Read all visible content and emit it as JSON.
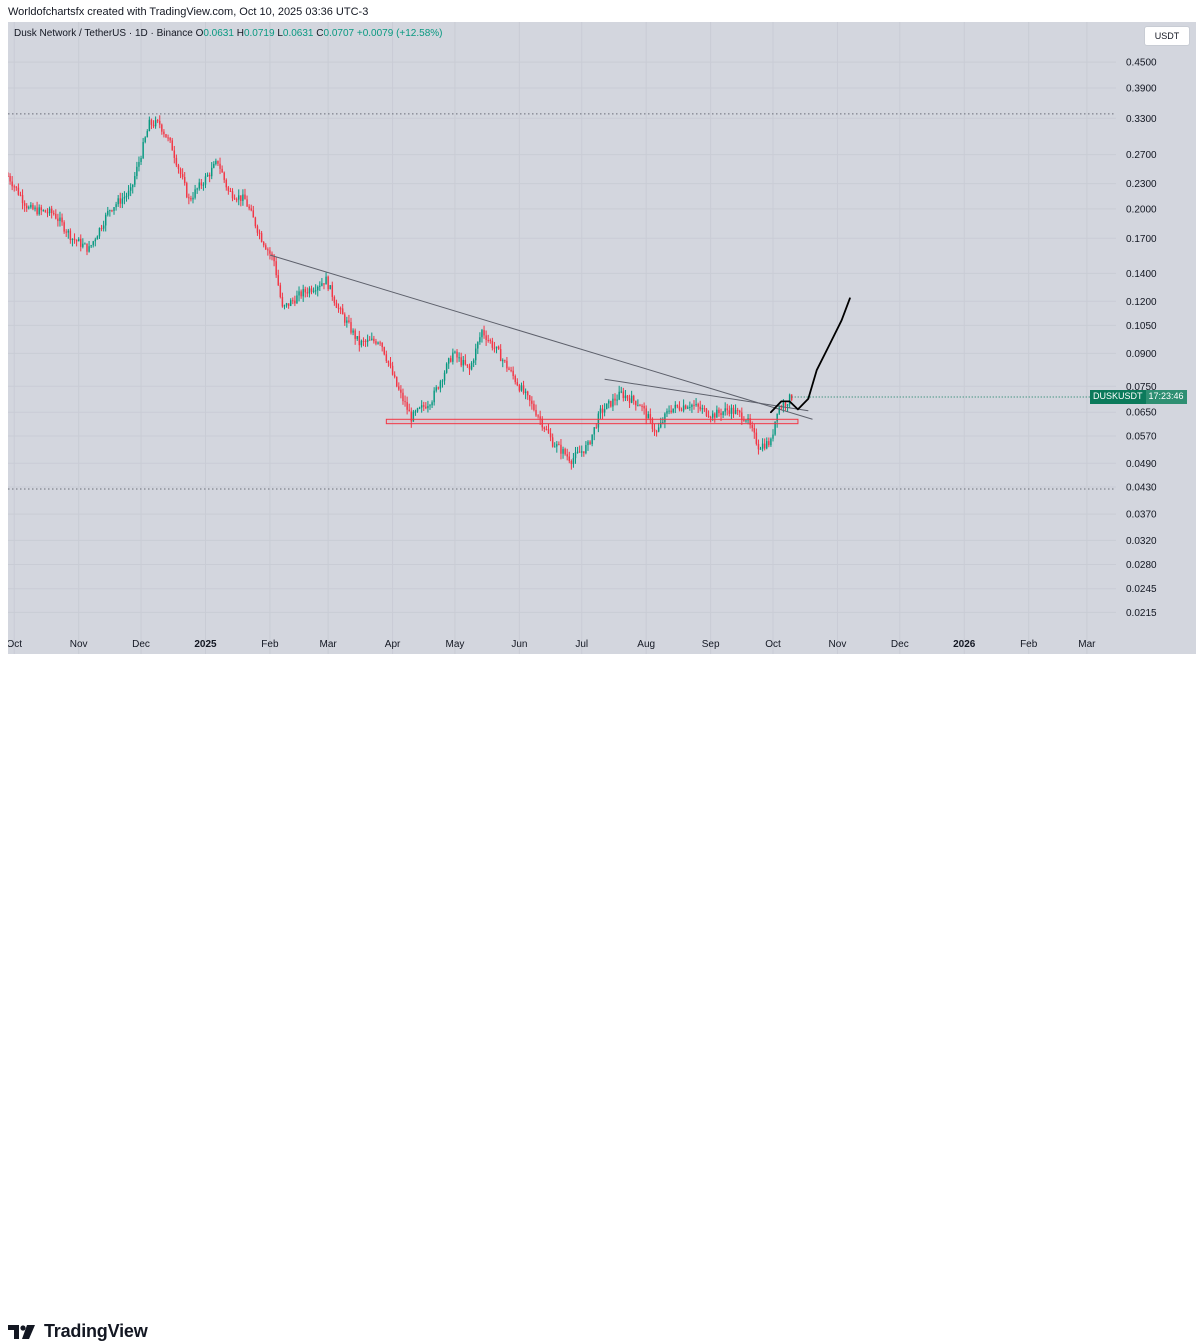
{
  "header": {
    "creator_line": "Worldofchartsfx created with TradingView.com, Oct 10, 2025 03:36 UTC-3"
  },
  "legend": {
    "symbol": "Dusk Network / TetherUS · 1D · Binance",
    "open_label": "O",
    "open": "0.0631",
    "high_label": "H",
    "high": "0.0719",
    "low_label": "L",
    "low": "0.0631",
    "close_label": "C",
    "close": "0.0707",
    "change": "+0.0079 (+12.58%)"
  },
  "currency_button": "USDT",
  "symbol_tag": {
    "ticker": "DUSKUSDT",
    "countdown": "17:23:46"
  },
  "footer": {
    "brand": "TradingView"
  },
  "colors": {
    "up": "#089981",
    "down": "#f23645",
    "background": "#d3d6de",
    "trendline": "#5d606b",
    "support_zone": "#f23645",
    "projection": "#000000"
  },
  "chart_data": {
    "type": "candlestick",
    "scale": "log",
    "price_ticks": [
      "0.4500",
      "0.3900",
      "0.3300",
      "0.2700",
      "0.2300",
      "0.2000",
      "0.1700",
      "0.1400",
      "0.1200",
      "0.1050",
      "0.0900",
      "0.0750",
      "0.0650",
      "0.0570",
      "0.0490",
      "0.0430",
      "0.0370",
      "0.0320",
      "0.0280",
      "0.0245",
      "0.0215"
    ],
    "time_ticks": [
      {
        "label": "Oct",
        "date": "2024-10-01"
      },
      {
        "label": "Nov",
        "date": "2024-11-01"
      },
      {
        "label": "Dec",
        "date": "2024-12-01"
      },
      {
        "label": "2025",
        "date": "2025-01-01"
      },
      {
        "label": "Feb",
        "date": "2025-02-01"
      },
      {
        "label": "Mar",
        "date": "2025-03-01"
      },
      {
        "label": "Apr",
        "date": "2025-04-01"
      },
      {
        "label": "May",
        "date": "2025-05-01"
      },
      {
        "label": "Jun",
        "date": "2025-06-01"
      },
      {
        "label": "Jul",
        "date": "2025-07-01"
      },
      {
        "label": "Aug",
        "date": "2025-08-01"
      },
      {
        "label": "Sep",
        "date": "2025-09-01"
      },
      {
        "label": "Oct",
        "date": "2025-10-01"
      },
      {
        "label": "Nov",
        "date": "2025-11-01"
      },
      {
        "label": "Dec",
        "date": "2025-12-01"
      },
      {
        "label": "2026",
        "date": "2026-01-01"
      },
      {
        "label": "Feb",
        "date": "2026-02-01"
      },
      {
        "label": "Mar",
        "date": "2026-03-01"
      }
    ],
    "x_range": [
      "2024-09-28",
      "2026-03-15"
    ],
    "y_range": [
      0.0195,
      0.52
    ],
    "price_path": [
      [
        "2024-09-28",
        0.24
      ],
      [
        "2024-10-08",
        0.2
      ],
      [
        "2024-10-20",
        0.195
      ],
      [
        "2024-10-29",
        0.17
      ],
      [
        "2024-11-06",
        0.16
      ],
      [
        "2024-11-16",
        0.2
      ],
      [
        "2024-11-26",
        0.22
      ],
      [
        "2024-12-05",
        0.32
      ],
      [
        "2024-12-10",
        0.32
      ],
      [
        "2024-12-16",
        0.28
      ],
      [
        "2024-12-24",
        0.21
      ],
      [
        "2025-01-02",
        0.24
      ],
      [
        "2025-01-07",
        0.26
      ],
      [
        "2025-01-12",
        0.22
      ],
      [
        "2025-01-20",
        0.21
      ],
      [
        "2025-01-28",
        0.17
      ],
      [
        "2025-02-03",
        0.15
      ],
      [
        "2025-02-07",
        0.115
      ],
      [
        "2025-02-16",
        0.125
      ],
      [
        "2025-02-28",
        0.135
      ],
      [
        "2025-03-06",
        0.115
      ],
      [
        "2025-03-16",
        0.095
      ],
      [
        "2025-03-26",
        0.097
      ],
      [
        "2025-04-03",
        0.075
      ],
      [
        "2025-04-10",
        0.063
      ],
      [
        "2025-04-20",
        0.07
      ],
      [
        "2025-04-30",
        0.09
      ],
      [
        "2025-05-08",
        0.082
      ],
      [
        "2025-05-14",
        0.102
      ],
      [
        "2025-05-22",
        0.09
      ],
      [
        "2025-06-01",
        0.075
      ],
      [
        "2025-06-10",
        0.064
      ],
      [
        "2025-06-17",
        0.055
      ],
      [
        "2025-06-26",
        0.05
      ],
      [
        "2025-07-04",
        0.054
      ],
      [
        "2025-07-10",
        0.065
      ],
      [
        "2025-07-20",
        0.072
      ],
      [
        "2025-07-29",
        0.068
      ],
      [
        "2025-08-06",
        0.058
      ],
      [
        "2025-08-12",
        0.066
      ],
      [
        "2025-08-22",
        0.068
      ],
      [
        "2025-09-02",
        0.064
      ],
      [
        "2025-09-10",
        0.066
      ],
      [
        "2025-09-18",
        0.063
      ],
      [
        "2025-09-24",
        0.054
      ],
      [
        "2025-09-30",
        0.055
      ],
      [
        "2025-10-03",
        0.066
      ],
      [
        "2025-10-10",
        0.0707
      ]
    ],
    "descending_trendline": [
      [
        "2025-02-01",
        0.155
      ],
      [
        "2025-10-20",
        0.0625
      ]
    ],
    "minor_trendline": [
      [
        "2025-07-12",
        0.078
      ],
      [
        "2025-10-18",
        0.0655
      ]
    ],
    "support_zone": {
      "from": "2025-03-29",
      "to": "2025-10-13",
      "top": 0.0625,
      "bottom": 0.061
    },
    "dotted_levels": [
      0.338,
      0.0425
    ],
    "projection_path": [
      [
        "2025-09-30",
        0.065
      ],
      [
        "2025-10-05",
        0.069
      ],
      [
        "2025-10-09",
        0.069
      ],
      [
        "2025-10-13",
        0.066
      ],
      [
        "2025-10-18",
        0.07
      ],
      [
        "2025-10-22",
        0.082
      ],
      [
        "2025-10-28",
        0.094
      ],
      [
        "2025-11-03",
        0.108
      ],
      [
        "2025-11-07",
        0.122
      ]
    ]
  }
}
